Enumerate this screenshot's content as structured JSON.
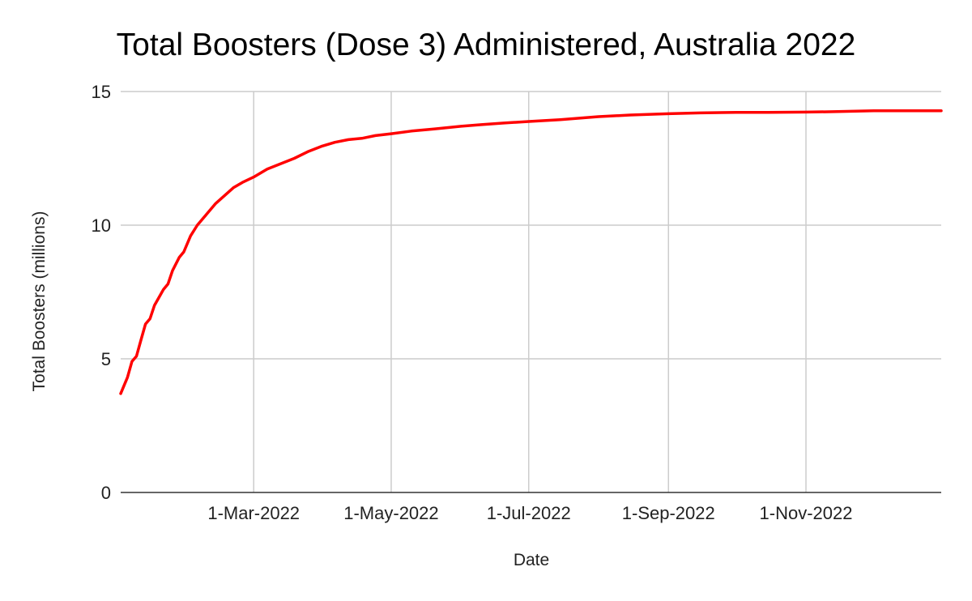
{
  "chart_data": {
    "type": "line",
    "title": "Total Boosters (Dose 3) Administered, Australia 2022",
    "xlabel": "Date",
    "ylabel": "Total Boosters (millions)",
    "ylim": [
      0,
      15
    ],
    "yticks": [
      0,
      5,
      10,
      15
    ],
    "xlim": [
      "2022-01-01",
      "2022-12-31"
    ],
    "xticks": [
      {
        "date": "2022-03-01",
        "label": "1-Mar-2022"
      },
      {
        "date": "2022-05-01",
        "label": "1-May-2022"
      },
      {
        "date": "2022-07-01",
        "label": "1-Jul-2022"
      },
      {
        "date": "2022-09-01",
        "label": "1-Sep-2022"
      },
      {
        "date": "2022-11-01",
        "label": "1-Nov-2022"
      }
    ],
    "grid": true,
    "legend": "none",
    "color": "#ff0000",
    "series": [
      {
        "x": [
          "2022-01-01",
          "2022-01-04",
          "2022-01-06",
          "2022-01-08",
          "2022-01-10",
          "2022-01-12",
          "2022-01-14",
          "2022-01-16",
          "2022-01-18",
          "2022-01-20",
          "2022-01-22",
          "2022-01-24",
          "2022-01-27",
          "2022-01-29",
          "2022-02-01",
          "2022-02-04",
          "2022-02-08",
          "2022-02-12",
          "2022-02-16",
          "2022-02-20",
          "2022-02-24",
          "2022-03-01",
          "2022-03-07",
          "2022-03-13",
          "2022-03-19",
          "2022-03-25",
          "2022-03-31",
          "2022-04-06",
          "2022-04-12",
          "2022-04-18",
          "2022-04-24",
          "2022-05-01",
          "2022-05-10",
          "2022-05-20",
          "2022-06-01",
          "2022-06-10",
          "2022-06-20",
          "2022-07-01",
          "2022-07-15",
          "2022-08-01",
          "2022-08-15",
          "2022-09-01",
          "2022-09-15",
          "2022-10-01",
          "2022-10-15",
          "2022-11-01",
          "2022-11-15",
          "2022-12-01",
          "2022-12-15",
          "2022-12-31"
        ],
        "y": [
          3.7,
          4.3,
          4.9,
          5.1,
          5.7,
          6.3,
          6.5,
          7.0,
          7.3,
          7.6,
          7.8,
          8.3,
          8.8,
          9.0,
          9.6,
          10.0,
          10.4,
          10.8,
          11.1,
          11.4,
          11.6,
          11.8,
          12.1,
          12.3,
          12.5,
          12.75,
          12.95,
          13.1,
          13.2,
          13.25,
          13.35,
          13.42,
          13.52,
          13.6,
          13.7,
          13.76,
          13.82,
          13.88,
          13.95,
          14.06,
          14.12,
          14.17,
          14.2,
          14.22,
          14.22,
          14.23,
          14.25,
          14.28,
          14.28,
          14.28
        ]
      }
    ]
  }
}
